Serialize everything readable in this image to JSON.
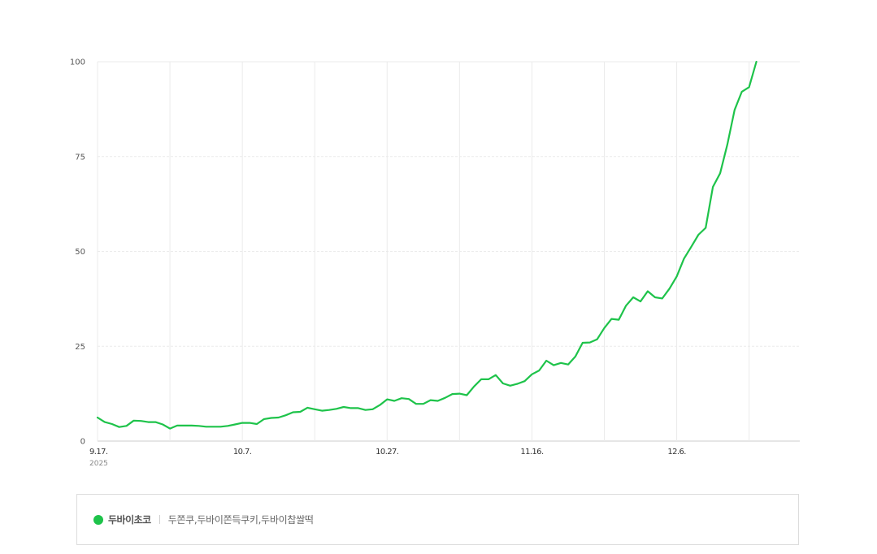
{
  "colors": {
    "series": "#1ec34a",
    "grid": "#ebebeb",
    "axis": "#cccccc"
  },
  "chart_data": {
    "type": "line",
    "x_start": "2025-09-17",
    "x_ticks": [
      {
        "date": "2025-09-17",
        "label": "9.17.",
        "sublabel": "2025"
      },
      {
        "date": "2025-10-07",
        "label": "10.7."
      },
      {
        "date": "2025-10-27",
        "label": "10.27."
      },
      {
        "date": "2025-11-16",
        "label": "11.16."
      },
      {
        "date": "2025-12-06",
        "label": "12.6."
      }
    ],
    "x_grid_dates": [
      "2025-09-27",
      "2025-10-17",
      "2025-11-06",
      "2025-11-26",
      "2025-12-16"
    ],
    "x_range": [
      "2025-09-17",
      "2025-12-23"
    ],
    "ylim": [
      0,
      100
    ],
    "yticks": [
      0,
      25,
      50,
      75,
      100
    ],
    "grid": true,
    "legend_position": "bottom",
    "series": [
      {
        "name": "두바이초코",
        "keywords": "두쫀쿠,두바이쫀득쿠키,두바이찹쌀떡",
        "values": [
          6.2,
          5.0,
          4.5,
          3.7,
          4.0,
          5.4,
          5.3,
          5.0,
          5.0,
          4.4,
          3.3,
          4.1,
          4.1,
          4.1,
          4.0,
          3.8,
          3.8,
          3.8,
          4.0,
          4.4,
          4.8,
          4.8,
          4.5,
          5.8,
          6.1,
          6.2,
          6.8,
          7.6,
          7.7,
          8.8,
          8.4,
          8.0,
          8.2,
          8.5,
          9.0,
          8.7,
          8.7,
          8.2,
          8.4,
          9.5,
          11.0,
          10.6,
          11.3,
          11.1,
          9.8,
          9.8,
          10.8,
          10.6,
          11.4,
          12.4,
          12.5,
          12.1,
          14.4,
          16.3,
          16.3,
          17.4,
          15.2,
          14.6,
          15.1,
          15.8,
          17.6,
          18.6,
          21.2,
          20.0,
          20.6,
          20.2,
          22.3,
          25.9,
          26.0,
          26.8,
          29.8,
          32.2,
          32.0,
          35.7,
          37.9,
          36.8,
          39.5,
          37.9,
          37.6,
          40.2,
          43.4,
          48.1,
          51.2,
          54.4,
          56.2,
          67.0,
          70.6,
          78.2,
          87.3,
          92.1,
          93.3,
          100.0
        ]
      }
    ]
  }
}
